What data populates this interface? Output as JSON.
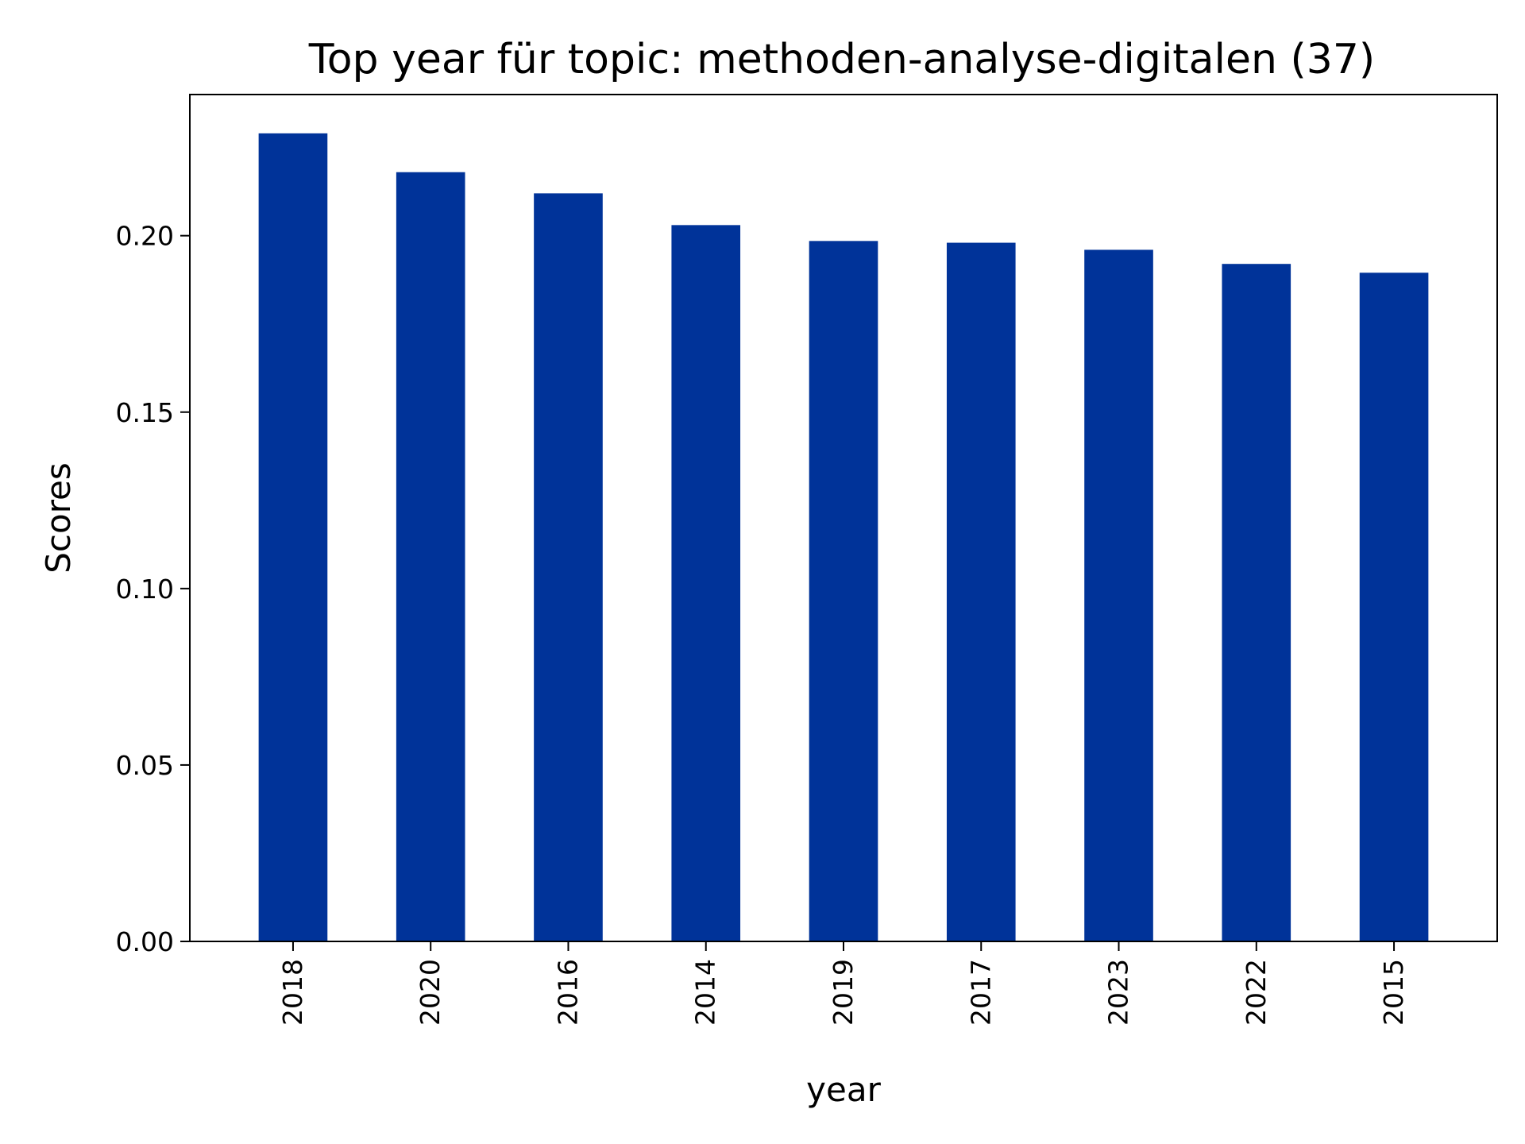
{
  "chart_data": {
    "type": "bar",
    "title": "Top year für topic: methoden-analyse-digitalen (37)",
    "xlabel": "year",
    "ylabel": "Scores",
    "categories": [
      "2018",
      "2020",
      "2016",
      "2014",
      "2019",
      "2017",
      "2023",
      "2022",
      "2015"
    ],
    "values": [
      0.229,
      0.218,
      0.212,
      0.203,
      0.1985,
      0.198,
      0.196,
      0.192,
      0.1895
    ],
    "ylim": [
      0,
      0.24
    ],
    "yticks": [
      0.0,
      0.05,
      0.1,
      0.15,
      0.2
    ],
    "ytick_labels": [
      "0.00",
      "0.05",
      "0.10",
      "0.15",
      "0.20"
    ],
    "grid": false,
    "legend": "none",
    "bar_color": "#003399",
    "xtick_rotation": "vertical"
  }
}
